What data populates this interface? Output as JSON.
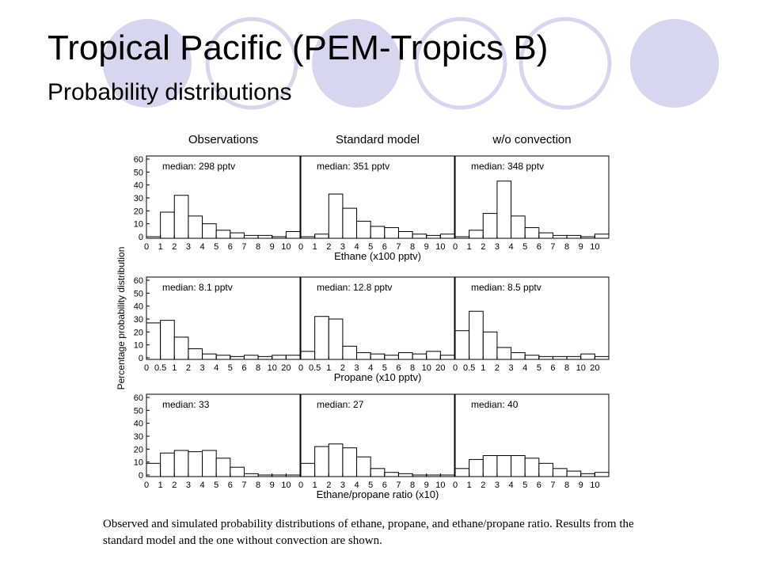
{
  "slide": {
    "title": "Tropical Pacific (PEM-Tropics B)",
    "subtitle": "Probability distributions",
    "caption": "Observed and simulated probability distributions of ethane, propane, and ethane/propane ratio. Results from the standard model and the one without convection are shown.",
    "decoration": {
      "circle_fill": "#d6d6ee",
      "circle_stroke": "#d6d6ee"
    }
  },
  "chart_data": {
    "type": "bar",
    "layout": "3x3 grid of histograms",
    "columns": [
      "Observations",
      "Standard model",
      "w/o convection"
    ],
    "ylabel": "Percentage probability distribution",
    "ylim": [
      0,
      60
    ],
    "yticks": [
      "0",
      "10",
      "20",
      "30",
      "40",
      "50",
      "60"
    ],
    "rows": [
      {
        "xlabel": "Ethane (x100 pptv)",
        "xticks": [
          "0",
          "1",
          "2",
          "3",
          "4",
          "5",
          "6",
          "7",
          "8",
          "9",
          "10"
        ],
        "panels": [
          {
            "median": "median: 298 pptv",
            "values": [
              0,
              19,
              32,
              16,
              10,
              5,
              3,
              1,
              1,
              0,
              4
            ]
          },
          {
            "median": "median: 351 pptv",
            "values": [
              0,
              2,
              33,
              22,
              12,
              8,
              7,
              4,
              2,
              1,
              2
            ]
          },
          {
            "median": "median: 348 pptv",
            "values": [
              0,
              5,
              18,
              43,
              16,
              7,
              3,
              1,
              1,
              0,
              2
            ]
          }
        ]
      },
      {
        "xlabel": "Propane (x10 pptv)",
        "xticks": [
          "0",
          "0.5",
          "1",
          "2",
          "3",
          "4",
          "5",
          "6",
          "8",
          "10",
          "20"
        ],
        "panels": [
          {
            "median": "median: 8.1 pptv",
            "values": [
              27,
              29,
              16,
              7,
              3,
              2,
              1,
              2,
              1,
              2,
              2
            ]
          },
          {
            "median": "median: 12.8 pptv",
            "values": [
              5,
              32,
              30,
              9,
              4,
              3,
              2,
              4,
              3,
              5,
              2
            ]
          },
          {
            "median": "median: 8.5 pptv",
            "values": [
              21,
              36,
              20,
              8,
              4,
              2,
              1,
              1,
              1,
              3,
              1
            ]
          }
        ]
      },
      {
        "xlabel": "Ethane/propane ratio (x10)",
        "xticks": [
          "0",
          "1",
          "2",
          "3",
          "4",
          "5",
          "6",
          "7",
          "8",
          "9",
          "10"
        ],
        "panels": [
          {
            "median": "median: 33",
            "values": [
              9,
              17,
              19,
              18,
              19,
              13,
              6,
              1,
              0,
              0,
              0
            ]
          },
          {
            "median": "median: 27",
            "values": [
              9,
              22,
              24,
              21,
              14,
              5,
              2,
              1,
              0,
              0,
              0
            ]
          },
          {
            "median": "median: 40",
            "values": [
              5,
              12,
              15,
              15,
              15,
              13,
              9,
              5,
              3,
              1,
              2
            ]
          }
        ]
      }
    ]
  }
}
